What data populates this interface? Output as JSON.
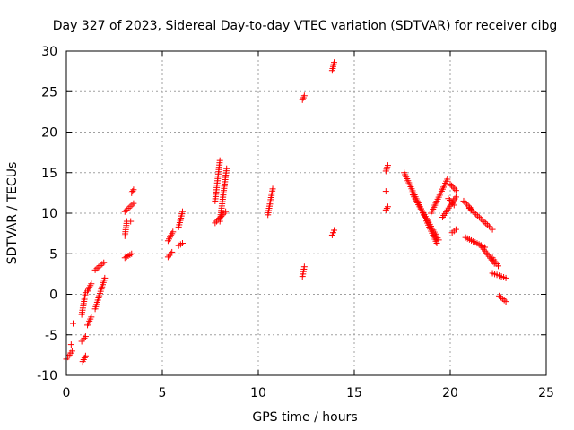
{
  "chart_data": {
    "type": "scatter",
    "title": "Day 327 of 2023, Sidereal Day-to-day VTEC variation (SDTVAR) for receiver cibg",
    "xlabel": "GPS time / hours",
    "ylabel": "SDTVAR / TECUs",
    "xlim": [
      0,
      25
    ],
    "ylim": [
      -10,
      30
    ],
    "xticks": [
      0,
      5,
      10,
      15,
      20,
      25
    ],
    "yticks": [
      -10,
      -5,
      0,
      5,
      10,
      15,
      20,
      25,
      30
    ],
    "grid": true,
    "marker": "+",
    "color": "#ff0000",
    "series": [
      {
        "name": "SDTVAR",
        "segments": [
          {
            "x": [
              0.0,
              0.3
            ],
            "y": [
              -8.0,
              -7.0
            ]
          },
          {
            "x": [
              0.25
            ],
            "y": [
              -6.2
            ]
          },
          {
            "x": [
              0.35
            ],
            "y": [
              -3.6
            ]
          },
          {
            "x": [
              0.8,
              1.0
            ],
            "y": [
              -2.5,
              0.2
            ]
          },
          {
            "x": [
              0.8,
              1.0
            ],
            "y": [
              -5.8,
              -5.2
            ]
          },
          {
            "x": [
              0.85,
              1.0
            ],
            "y": [
              -8.3,
              -7.6
            ]
          },
          {
            "x": [
              1.1,
              1.3
            ],
            "y": [
              -3.8,
              -2.8
            ]
          },
          {
            "x": [
              1.1,
              1.3
            ],
            "y": [
              0.4,
              1.3
            ]
          },
          {
            "x": [
              1.5,
              1.95
            ],
            "y": [
              3.0,
              3.9
            ]
          },
          {
            "x": [
              1.5,
              2.0
            ],
            "y": [
              -1.8,
              2.0
            ]
          },
          {
            "x": [
              3.05,
              3.15
            ],
            "y": [
              7.2,
              9.0
            ]
          },
          {
            "x": [
              3.05,
              3.5
            ],
            "y": [
              10.2,
              11.2
            ]
          },
          {
            "x": [
              3.4,
              3.5
            ],
            "y": [
              12.5,
              12.9
            ]
          },
          {
            "x": [
              3.35
            ],
            "y": [
              9.0
            ]
          },
          {
            "x": [
              3.05,
              3.4
            ],
            "y": [
              4.5,
              5.0
            ]
          },
          {
            "x": [
              5.3,
              5.5
            ],
            "y": [
              4.6,
              5.2
            ]
          },
          {
            "x": [
              5.3,
              5.55
            ],
            "y": [
              6.6,
              7.7
            ]
          },
          {
            "x": [
              5.85,
              6.05
            ],
            "y": [
              6.0,
              6.3
            ]
          },
          {
            "x": [
              5.85,
              6.05
            ],
            "y": [
              8.3,
              10.2
            ]
          },
          {
            "x": [
              7.75,
              8.3
            ],
            "y": [
              8.8,
              10.2
            ]
          },
          {
            "x": [
              7.75,
              8.0
            ],
            "y": [
              11.5,
              16.5
            ]
          },
          {
            "x": [
              8.0,
              8.35
            ],
            "y": [
              9.0,
              15.5
            ]
          },
          {
            "x": [
              10.5,
              10.75
            ],
            "y": [
              9.8,
              13.0
            ]
          },
          {
            "x": [
              12.3,
              12.4
            ],
            "y": [
              2.2,
              3.4
            ]
          },
          {
            "x": [
              12.3,
              12.4
            ],
            "y": [
              24.0,
              24.5
            ]
          },
          {
            "x": [
              13.85,
              13.95
            ],
            "y": [
              7.3,
              7.9
            ]
          },
          {
            "x": [
              13.85,
              13.95
            ],
            "y": [
              27.6,
              28.6
            ]
          },
          {
            "x": [
              16.65,
              16.75
            ],
            "y": [
              10.4,
              10.8
            ]
          },
          {
            "x": [
              16.65
            ],
            "y": [
              12.7
            ]
          },
          {
            "x": [
              16.65,
              16.75
            ],
            "y": [
              15.2,
              15.9
            ]
          },
          {
            "x": [
              17.6,
              19.3
            ],
            "y": [
              15.0,
              6.3
            ]
          },
          {
            "x": [
              18.0,
              19.4
            ],
            "y": [
              12.5,
              6.7
            ]
          },
          {
            "x": [
              19.0,
              19.85
            ],
            "y": [
              10.0,
              14.2
            ]
          },
          {
            "x": [
              19.6,
              20.3
            ],
            "y": [
              9.5,
              12.0
            ]
          },
          {
            "x": [
              20.0,
              20.3
            ],
            "y": [
              13.6,
              12.8
            ]
          },
          {
            "x": [
              19.9,
              20.2
            ],
            "y": [
              11.8,
              11.0
            ]
          },
          {
            "x": [
              20.1,
              20.3
            ],
            "y": [
              7.6,
              8.0
            ]
          },
          {
            "x": [
              20.7,
              21.1
            ],
            "y": [
              11.5,
              10.5
            ]
          },
          {
            "x": [
              21.0,
              22.2
            ],
            "y": [
              10.6,
              8.0
            ]
          },
          {
            "x": [
              20.8,
              21.8
            ],
            "y": [
              7.0,
              5.8
            ]
          },
          {
            "x": [
              21.6,
              22.3
            ],
            "y": [
              6.0,
              3.8
            ]
          },
          {
            "x": [
              22.2,
              22.5
            ],
            "y": [
              4.5,
              3.5
            ]
          },
          {
            "x": [
              22.2,
              22.9
            ],
            "y": [
              2.6,
              2.0
            ]
          },
          {
            "x": [
              22.55,
              22.9
            ],
            "y": [
              -0.2,
              -0.9
            ]
          }
        ]
      }
    ]
  }
}
